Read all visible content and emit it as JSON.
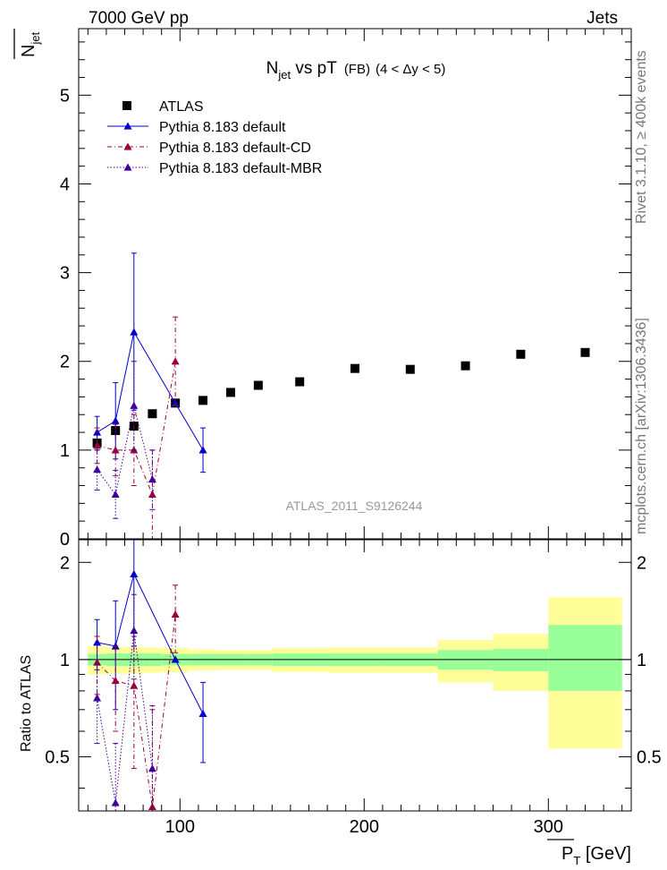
{
  "header": {
    "left": "7000 GeV pp",
    "right": "Jets"
  },
  "side_labels": {
    "rivet_prefix": "Rivet 3.1.10, ",
    "rivet_events": "≥ 400k events",
    "mcplots": "mcplots.cern.ch [arXiv:1306.3436]"
  },
  "colors": {
    "atlas": "#000000",
    "default": "#0000cc",
    "cd": "#99003d",
    "mbr": "#3f0099",
    "band_inner": "#99ff99",
    "band_outer": "#ffff99"
  },
  "chart_data": [
    {
      "panel": "main",
      "type": "scatter",
      "title": {
        "main": "N",
        "main_sub": "jet",
        "main_rest": " vs pT",
        "tag": "(FB)",
        "range": "(4 < Δy < 5)"
      },
      "ylabel": {
        "main": "N",
        "sub": "jet"
      },
      "analysis_label": "ATLAS_2011_S9126244",
      "xlim": [
        45,
        345
      ],
      "ylim": [
        0,
        5.75
      ],
      "yticks": [
        "0",
        "1",
        "2",
        "3",
        "4",
        "5"
      ],
      "legend": {
        "placement": "top-left",
        "entries": [
          "ATLAS",
          "Pythia 8.183 default",
          "Pythia 8.183 default-CD",
          "Pythia 8.183 default-MBR"
        ]
      },
      "series": [
        {
          "name": "ATLAS",
          "style": "square",
          "x": [
            55,
            65,
            75,
            85,
            97.5,
            112.5,
            127.5,
            142.5,
            165,
            195,
            225,
            255,
            285,
            320
          ],
          "y": [
            1.08,
            1.22,
            1.27,
            1.41,
            1.53,
            1.56,
            1.65,
            1.73,
            1.77,
            1.92,
            1.91,
            1.95,
            2.08,
            2.1
          ],
          "xerr": [
            5,
            5,
            5,
            5,
            7.5,
            7.5,
            7.5,
            7.5,
            15,
            15,
            15,
            15,
            15,
            20
          ]
        },
        {
          "name": "Pythia 8.183 default",
          "style": "solid",
          "x": [
            55,
            65,
            75,
            97.5,
            112.5
          ],
          "y": [
            1.2,
            1.33,
            2.33,
            1.53,
            1.0
          ],
          "lo": [
            1.0,
            0.9,
            1.45,
            1.53,
            0.75
          ],
          "hi": [
            1.38,
            1.76,
            3.22,
            1.53,
            1.25
          ]
        },
        {
          "name": "Pythia 8.183 default-CD",
          "style": "dashdot",
          "x": [
            55,
            65,
            75,
            85,
            97.5
          ],
          "y": [
            1.05,
            1.0,
            1.0,
            0.5,
            2.0
          ],
          "lo": [
            0.85,
            0.71,
            0.6,
            0.0,
            1.5
          ],
          "hi": [
            1.25,
            1.29,
            1.4,
            1.0,
            2.5
          ]
        },
        {
          "name": "Pythia 8.183 default-MBR",
          "style": "dotted",
          "x": [
            55,
            65,
            75,
            85
          ],
          "y": [
            0.78,
            0.5,
            1.5,
            0.67
          ],
          "lo": [
            0.55,
            0.23,
            1.0,
            0.33
          ],
          "hi": [
            1.0,
            0.77,
            2.0,
            1.0
          ]
        }
      ]
    },
    {
      "panel": "ratio",
      "type": "scatter",
      "ylabel": "Ratio to ATLAS",
      "xlabel": {
        "main": "P",
        "sub": "T",
        "unit": " [GeV]"
      },
      "xlim": [
        45,
        345
      ],
      "ylim": [
        0.34,
        2.35
      ],
      "xticks": [
        "100",
        "200",
        "300"
      ],
      "yticks": [
        "0.5",
        "1",
        "2"
      ],
      "band": {
        "x0": [
          50,
          60,
          70,
          80,
          90,
          105,
          120,
          135,
          150,
          180,
          210,
          240,
          270,
          300,
          340
        ],
        "inner_lo": [
          0.96,
          0.955,
          0.955,
          0.955,
          0.96,
          0.96,
          0.96,
          0.96,
          0.955,
          0.955,
          0.955,
          0.93,
          0.92,
          0.8
        ],
        "inner_hi": [
          1.04,
          1.045,
          1.045,
          1.045,
          1.04,
          1.04,
          1.04,
          1.04,
          1.045,
          1.045,
          1.045,
          1.07,
          1.08,
          1.28
        ],
        "outer_lo": [
          0.9,
          0.905,
          0.905,
          0.91,
          0.915,
          0.925,
          0.93,
          0.93,
          0.915,
          0.91,
          0.91,
          0.85,
          0.8,
          0.53
        ],
        "outer_hi": [
          1.1,
          1.095,
          1.095,
          1.09,
          1.085,
          1.075,
          1.07,
          1.07,
          1.085,
          1.09,
          1.09,
          1.15,
          1.2,
          1.56
        ]
      },
      "series": [
        {
          "name": "Pythia 8.183 default",
          "style": "solid",
          "x": [
            55,
            65,
            75,
            97.5,
            112.5
          ],
          "y": [
            1.13,
            1.1,
            1.84,
            1.0,
            0.68
          ],
          "lo": [
            0.93,
            0.7,
            1.1,
            1.0,
            0.48
          ],
          "hi": [
            1.33,
            1.52,
            2.55,
            1.0,
            0.85
          ]
        },
        {
          "name": "Pythia 8.183 default-CD",
          "style": "dashdot",
          "x": [
            55,
            65,
            75,
            85,
            97.5
          ],
          "y": [
            0.98,
            0.86,
            0.83,
            0.35,
            1.38
          ],
          "lo": [
            0.78,
            0.6,
            0.46,
            0.0,
            1.05
          ],
          "hi": [
            1.18,
            1.1,
            1.18,
            0.7,
            1.7
          ]
        },
        {
          "name": "Pythia 8.183 default-MBR",
          "style": "dotted",
          "x": [
            55,
            65,
            75,
            85
          ],
          "y": [
            0.76,
            0.36,
            1.23,
            0.46
          ],
          "lo": [
            0.55,
            0.17,
            0.87,
            0.23
          ],
          "hi": [
            0.97,
            0.55,
            1.59,
            0.72
          ]
        }
      ]
    }
  ]
}
